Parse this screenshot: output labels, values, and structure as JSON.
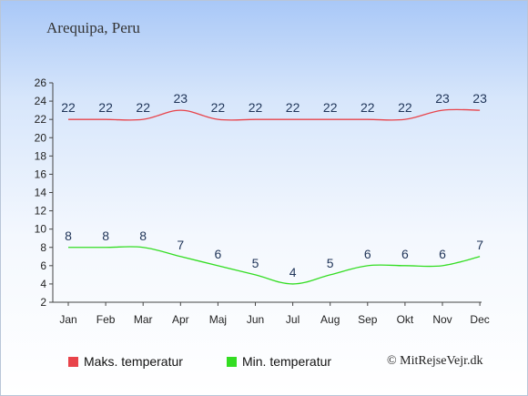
{
  "location": "Arequipa, Peru",
  "credit": "© MitRejseVejr.dk",
  "chart_data": {
    "type": "line",
    "categories": [
      "Jan",
      "Feb",
      "Mar",
      "Apr",
      "Maj",
      "Jun",
      "Jul",
      "Aug",
      "Sep",
      "Okt",
      "Nov",
      "Dec"
    ],
    "series": [
      {
        "name": "Maks. temperatur",
        "color": "#e8434a",
        "values": [
          22,
          22,
          22,
          23,
          22,
          22,
          22,
          22,
          22,
          22,
          23,
          23
        ]
      },
      {
        "name": "Min. temperatur",
        "color": "#33dd22",
        "values": [
          8,
          8,
          8,
          7,
          6,
          5,
          4,
          5,
          6,
          6,
          6,
          7
        ]
      }
    ],
    "ylim": [
      2,
      26
    ],
    "yticks": [
      2,
      4,
      6,
      8,
      10,
      12,
      14,
      16,
      18,
      20,
      22,
      24,
      26
    ],
    "grid": false,
    "legend": "bottom"
  }
}
